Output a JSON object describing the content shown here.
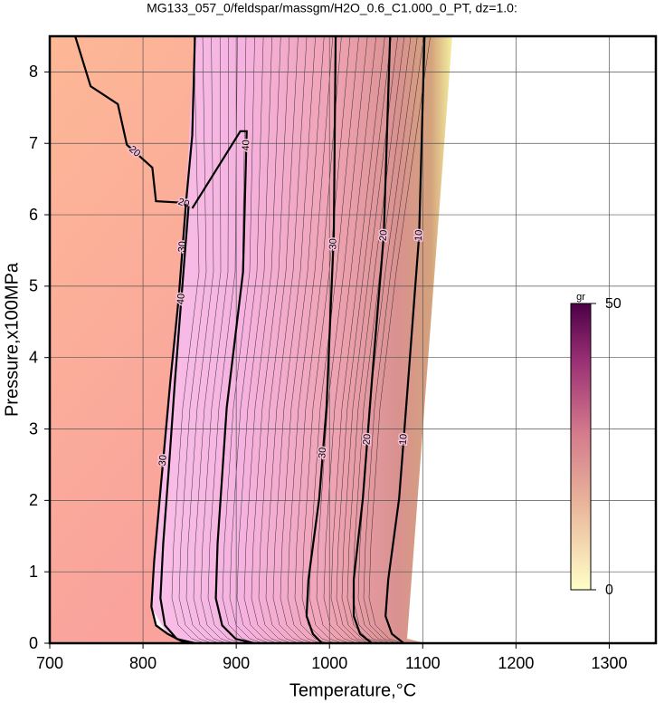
{
  "chart_data": {
    "type": "contour",
    "title": "MG133_057_0/feldspar/massgm/H2O_0.6_C1.000_0_PT, dz=1.0:",
    "xlabel": "Temperature,°C",
    "ylabel": "Pressure,x100MPa",
    "xlim": [
      700,
      1350
    ],
    "ylim": [
      0,
      8.5
    ],
    "xticks": [
      700,
      800,
      900,
      1000,
      1100,
      1200,
      1300
    ],
    "yticks": [
      0,
      1,
      2,
      3,
      4,
      5,
      6,
      7,
      8
    ],
    "grid": true,
    "contours": [
      {
        "level": 20,
        "x": [
          727.3,
          743.8,
          773,
          782.7,
          810,
          813.9,
          841.1,
          846,
          852.8,
          855.7
        ],
        "y": [
          8.5,
          7.8,
          7.55,
          6.98,
          6.66,
          6.19,
          6.17,
          6.15,
          7.11,
          8.5
        ]
      },
      {
        "level": 30,
        "x": [
          846,
          838.2,
          829.4,
          819.7,
          811.9,
          809,
          813.9,
          826.5,
          841.1,
          850.9
        ],
        "y": [
          6.15,
          4.82,
          3.68,
          2.28,
          1.14,
          0.51,
          0.25,
          0.13,
          0.03,
          0
        ]
      },
      {
        "level": 40,
        "x": [
          848.9,
          841.1,
          834.3,
          827.5,
          821.7,
          818.7,
          823.6,
          836.3,
          855.7
        ],
        "y": [
          6.12,
          4.82,
          3.68,
          2.41,
          1.4,
          0.63,
          0.25,
          0.06,
          0
        ]
      },
      {
        "level": 40,
        "x": [
          852.8,
          904.4,
          911.2,
          907.3,
          889.8,
          880,
          878.1,
          884.9,
          899.5,
          919
        ],
        "y": [
          6.09,
          7.17,
          7.17,
          5.2,
          3.3,
          1.4,
          0.63,
          0.25,
          0.06,
          0
        ]
      },
      {
        "level": 30,
        "x": [
          1006.6,
          1004.6,
          996.8,
          989,
          977.4,
          975.4,
          982.2,
          991.9
        ],
        "y": [
          8.5,
          5.71,
          3.3,
          2.03,
          0.89,
          0.38,
          0.13,
          0
        ]
      },
      {
        "level": 20,
        "x": [
          1065,
          1058.2,
          1045.5,
          1035.8,
          1026,
          1026,
          1032.8,
          1045.5
        ],
        "y": [
          8.5,
          5.71,
          3.68,
          2.03,
          0.89,
          0.38,
          0.13,
          0
        ]
      },
      {
        "level": 10,
        "x": [
          1101.9,
          1096.1,
          1084.4,
          1074.7,
          1063,
          1060.1,
          1066.9,
          1079.6
        ],
        "y": [
          8.5,
          5.71,
          3.68,
          2.03,
          0.89,
          0.38,
          0.13,
          0
        ]
      }
    ],
    "colorbar": {
      "label": "gr",
      "lim": [
        0,
        50
      ],
      "ticks": [
        0,
        50
      ]
    }
  }
}
